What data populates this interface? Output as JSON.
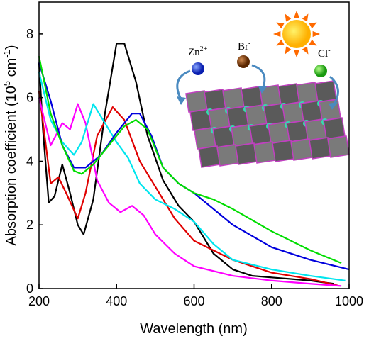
{
  "chart_data": {
    "type": "line",
    "xlabel": "Wavelength (nm)",
    "ylabel_parts": [
      "Absorption coefficient (10",
      "5",
      " cm",
      "-1",
      ")"
    ],
    "xlim": [
      200,
      1000
    ],
    "xticks": [
      200,
      400,
      600,
      800,
      1000
    ],
    "ylim": [
      0,
      9
    ],
    "yticks": [
      0,
      2,
      4,
      6,
      8
    ],
    "annotations": [
      {
        "text": "Zn",
        "sup": "2+"
      },
      {
        "text": "Br",
        "sup": "-"
      },
      {
        "text": "Cl",
        "sup": "-"
      }
    ],
    "series": [
      {
        "color": "#000000",
        "x": [
          200,
          210,
          225,
          240,
          260,
          280,
          300,
          315,
          340,
          370,
          400,
          420,
          450,
          480,
          520,
          560,
          600,
          650,
          700,
          750,
          800,
          900,
          960
        ],
        "values": [
          7.1,
          5.0,
          2.7,
          2.9,
          3.9,
          3.0,
          2.0,
          1.7,
          2.8,
          5.5,
          7.7,
          7.7,
          6.5,
          4.8,
          3.4,
          2.6,
          2.1,
          1.1,
          0.6,
          0.4,
          0.35,
          0.25,
          0.15
        ]
      },
      {
        "color": "#e00000",
        "x": [
          200,
          230,
          250,
          270,
          300,
          320,
          350,
          390,
          420,
          460,
          500,
          550,
          600,
          650,
          700,
          800,
          900,
          970
        ],
        "values": [
          6.2,
          3.3,
          3.5,
          3.0,
          2.2,
          3.0,
          4.8,
          5.7,
          5.3,
          4.0,
          3.2,
          2.2,
          1.5,
          1.2,
          0.9,
          0.5,
          0.3,
          0.1
        ]
      },
      {
        "color": "#ff00ff",
        "x": [
          200,
          230,
          260,
          280,
          300,
          320,
          350,
          380,
          410,
          440,
          470,
          500,
          550,
          600,
          700,
          800,
          900,
          980
        ],
        "values": [
          6.0,
          4.5,
          5.2,
          5.0,
          5.8,
          5.2,
          3.4,
          2.7,
          2.4,
          2.6,
          2.3,
          1.7,
          1.1,
          0.7,
          0.4,
          0.25,
          0.15,
          0.08
        ]
      },
      {
        "color": "#00e5ee",
        "x": [
          200,
          230,
          260,
          290,
          310,
          340,
          370,
          400,
          430,
          460,
          500,
          550,
          600,
          650,
          700,
          800,
          900,
          990
        ],
        "values": [
          6.8,
          5.3,
          4.6,
          4.2,
          4.6,
          5.8,
          5.2,
          4.6,
          4.1,
          3.3,
          2.8,
          2.5,
          2.1,
          1.4,
          0.9,
          0.6,
          0.4,
          0.25
        ]
      },
      {
        "color": "#0000dd",
        "x": [
          200,
          230,
          260,
          290,
          320,
          360,
          400,
          440,
          460,
          490,
          520,
          560,
          600,
          650,
          700,
          800,
          900,
          1000
        ],
        "values": [
          7.1,
          5.9,
          4.5,
          3.8,
          3.8,
          4.2,
          4.9,
          5.5,
          5.5,
          4.8,
          3.8,
          3.3,
          3.0,
          2.5,
          2.0,
          1.3,
          0.9,
          0.6
        ]
      },
      {
        "color": "#00dd00",
        "x": [
          200,
          230,
          260,
          290,
          310,
          340,
          380,
          420,
          450,
          480,
          520,
          560,
          600,
          650,
          700,
          800,
          900,
          980
        ],
        "values": [
          7.3,
          5.5,
          4.5,
          3.7,
          3.6,
          3.9,
          4.5,
          5.1,
          5.3,
          5.0,
          3.8,
          3.3,
          3.0,
          2.8,
          2.5,
          1.8,
          1.2,
          0.8
        ]
      }
    ]
  }
}
